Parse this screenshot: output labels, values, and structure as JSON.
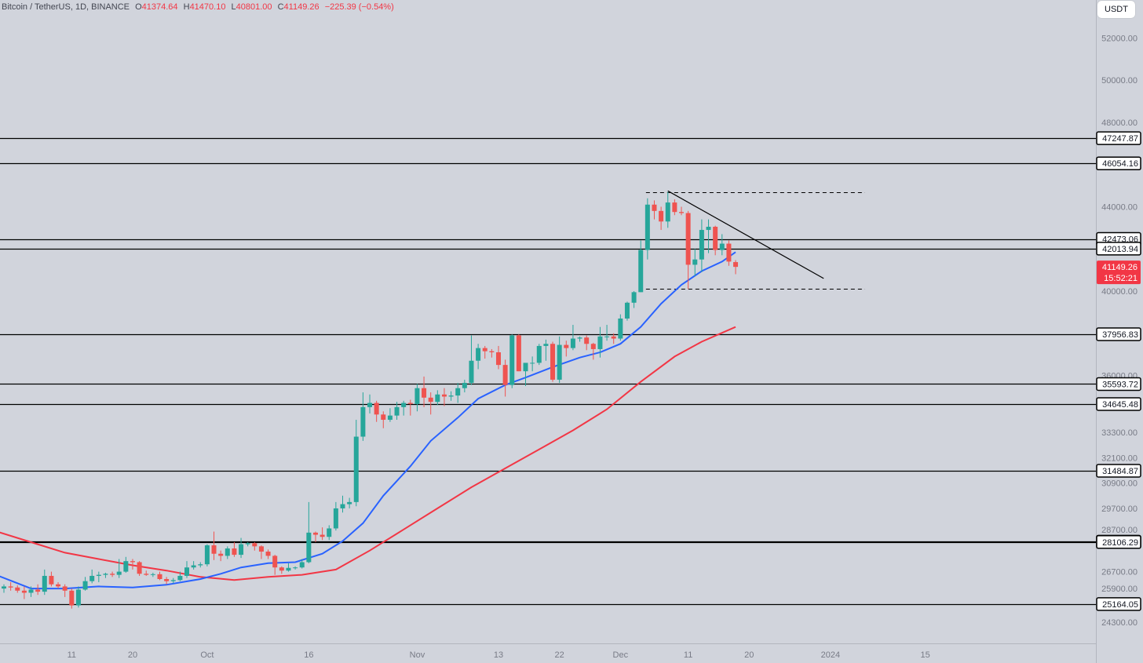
{
  "legend": {
    "symbol": "Bitcoin / TetherUS, 1D, BINANCE",
    "open_label": "O",
    "open": "41374.64",
    "high_label": "H",
    "high": "41470.10",
    "low_label": "L",
    "low": "40801.00",
    "close_label": "C",
    "close": "41149.26",
    "change": "−225.39 (−0.54%)"
  },
  "currency_button": "USDT",
  "colors": {
    "up": "#26a69a",
    "down": "#ef5350",
    "ma_fast": "#2962ff",
    "ma_slow": "#f23645",
    "background": "#d1d4dc"
  },
  "chart_data": {
    "type": "candlestick",
    "ylim": [
      23300,
      53800
    ],
    "y_ticks": [
      "52000.00",
      "50000.00",
      "48000.00",
      "44000.00",
      "40000.00",
      "36000.00",
      "33300.00",
      "32100.00",
      "30900.00",
      "29700.00",
      "28700.00",
      "26700.00",
      "25900.00",
      "24300.00"
    ],
    "x_ticks": [
      "11",
      "20",
      "Oct",
      "16",
      "Nov",
      "13",
      "22",
      "Dec",
      "11",
      "20",
      "2024",
      "15"
    ],
    "last_price": "41149.26",
    "countdown": "15:52:21",
    "horizontal_levels": [
      "47247.87",
      "46054.16",
      "42473.06",
      "42013.94",
      "37956.83",
      "35593.72",
      "34645.48",
      "31484.87",
      "28123.11",
      "28106.29",
      "25164.05"
    ],
    "consolidation_box": {
      "high": 44700,
      "low": 40100
    },
    "trendline": [
      {
        "date": "2023-12-08",
        "price": 44750
      },
      {
        "date": "2023-12-31",
        "price": 40600
      }
    ],
    "candles": [
      [
        "2023-09-01",
        25900,
        26100,
        25700,
        26000
      ],
      [
        "2023-09-02",
        26000,
        26200,
        25800,
        25950
      ],
      [
        "2023-09-03",
        25950,
        26050,
        25700,
        25800
      ],
      [
        "2023-09-04",
        25800,
        26000,
        25400,
        25700
      ],
      [
        "2023-09-05",
        25700,
        26000,
        25500,
        25850
      ],
      [
        "2023-09-06",
        25850,
        26100,
        25600,
        25750
      ],
      [
        "2023-09-07",
        25750,
        26800,
        25600,
        26500
      ],
      [
        "2023-09-08",
        26500,
        26700,
        26000,
        26100
      ],
      [
        "2023-09-09",
        26100,
        26200,
        25900,
        26000
      ],
      [
        "2023-09-10",
        26000,
        26100,
        25500,
        25800
      ],
      [
        "2023-09-11",
        25800,
        25900,
        24950,
        25100
      ],
      [
        "2023-09-12",
        25100,
        26000,
        25000,
        25850
      ],
      [
        "2023-09-13",
        25850,
        26450,
        25800,
        26250
      ],
      [
        "2023-09-14",
        26250,
        26800,
        26150,
        26500
      ],
      [
        "2023-09-15",
        26500,
        26700,
        26200,
        26550
      ],
      [
        "2023-09-16",
        26550,
        26650,
        26400,
        26600
      ],
      [
        "2023-09-17",
        26600,
        26700,
        26450,
        26550
      ],
      [
        "2023-09-18",
        26550,
        27300,
        26400,
        26700
      ],
      [
        "2023-09-19",
        26700,
        27400,
        26650,
        27200
      ],
      [
        "2023-09-20",
        27200,
        27300,
        26800,
        27150
      ],
      [
        "2023-09-21",
        27150,
        27200,
        26500,
        26600
      ],
      [
        "2023-09-22",
        26600,
        26750,
        26500,
        26550
      ],
      [
        "2023-09-23",
        26550,
        26650,
        26450,
        26580
      ],
      [
        "2023-09-24",
        26580,
        26700,
        26300,
        26350
      ],
      [
        "2023-09-25",
        26350,
        26450,
        26100,
        26250
      ],
      [
        "2023-09-26",
        26250,
        26400,
        26150,
        26300
      ],
      [
        "2023-09-27",
        26300,
        26700,
        26250,
        26500
      ],
      [
        "2023-09-28",
        26500,
        27200,
        26400,
        26900
      ],
      [
        "2023-09-29",
        26900,
        27200,
        26800,
        27000
      ],
      [
        "2023-09-30",
        27000,
        27150,
        26900,
        27050
      ],
      [
        "2023-10-01",
        27050,
        28000,
        26950,
        27950
      ],
      [
        "2023-10-02",
        27950,
        28600,
        27250,
        27550
      ],
      [
        "2023-10-03",
        27550,
        27700,
        27200,
        27450
      ],
      [
        "2023-10-04",
        27450,
        27900,
        27300,
        27800
      ],
      [
        "2023-10-05",
        27800,
        28100,
        27400,
        27500
      ],
      [
        "2023-10-06",
        27500,
        28300,
        27350,
        28000
      ],
      [
        "2023-10-07",
        28000,
        28100,
        27900,
        28050
      ],
      [
        "2023-10-08",
        28050,
        28100,
        27700,
        27900
      ],
      [
        "2023-10-09",
        27900,
        27950,
        27300,
        27650
      ],
      [
        "2023-10-10",
        27650,
        27750,
        27300,
        27450
      ],
      [
        "2023-10-11",
        27450,
        27500,
        26550,
        26900
      ],
      [
        "2023-10-12",
        26900,
        26950,
        26600,
        26750
      ],
      [
        "2023-10-13",
        26750,
        27100,
        26700,
        26880
      ],
      [
        "2023-10-14",
        26880,
        26950,
        26800,
        26900
      ],
      [
        "2023-10-15",
        26900,
        27300,
        26850,
        27150
      ],
      [
        "2023-10-16",
        27150,
        30000,
        27100,
        28550
      ],
      [
        "2023-10-17",
        28550,
        28600,
        28100,
        28450
      ],
      [
        "2023-10-18",
        28450,
        28800,
        28200,
        28350
      ],
      [
        "2023-10-19",
        28350,
        28900,
        28200,
        28750
      ],
      [
        "2023-10-20",
        28750,
        30000,
        28650,
        29700
      ],
      [
        "2023-10-21",
        29700,
        30300,
        29500,
        29900
      ],
      [
        "2023-10-22",
        29900,
        30200,
        29700,
        30000
      ],
      [
        "2023-10-23",
        30000,
        33900,
        29800,
        33100
      ],
      [
        "2023-10-24",
        33100,
        35200,
        32900,
        34500
      ],
      [
        "2023-10-25",
        34500,
        35100,
        34200,
        34700
      ],
      [
        "2023-10-26",
        34700,
        34800,
        33800,
        34150
      ],
      [
        "2023-10-27",
        34150,
        34300,
        33500,
        33900
      ],
      [
        "2023-10-28",
        33900,
        34450,
        33800,
        34100
      ],
      [
        "2023-10-29",
        34100,
        34750,
        33900,
        34500
      ],
      [
        "2023-10-30",
        34500,
        34800,
        34100,
        34700
      ],
      [
        "2023-10-31",
        34700,
        34850,
        34100,
        34650
      ],
      [
        "2023-11-01",
        34650,
        35600,
        34300,
        35400
      ],
      [
        "2023-11-02",
        35400,
        35950,
        34500,
        34950
      ],
      [
        "2023-11-03",
        34950,
        35200,
        34150,
        34750
      ],
      [
        "2023-11-04",
        34750,
        35300,
        34600,
        35100
      ],
      [
        "2023-11-05",
        35100,
        35400,
        34550,
        35000
      ],
      [
        "2023-11-06",
        35000,
        35250,
        34800,
        35050
      ],
      [
        "2023-11-07",
        35050,
        35650,
        34700,
        35400
      ],
      [
        "2023-11-08",
        35400,
        35800,
        35200,
        35650
      ],
      [
        "2023-11-09",
        35650,
        37900,
        35550,
        36700
      ],
      [
        "2023-11-10",
        36700,
        37500,
        36300,
        37300
      ],
      [
        "2023-11-11",
        37300,
        37400,
        36800,
        37150
      ],
      [
        "2023-11-12",
        37150,
        37250,
        36850,
        37100
      ],
      [
        "2023-11-13",
        37100,
        37400,
        36300,
        36500
      ],
      [
        "2023-11-14",
        36500,
        36750,
        35000,
        35550
      ],
      [
        "2023-11-15",
        35550,
        37950,
        35400,
        37900
      ],
      [
        "2023-11-16",
        37900,
        37950,
        36200,
        36200
      ],
      [
        "2023-11-17",
        36200,
        36500,
        35500,
        36600
      ],
      [
        "2023-11-18",
        36600,
        36900,
        36200,
        36600
      ],
      [
        "2023-11-19",
        36600,
        37500,
        36500,
        37400
      ],
      [
        "2023-11-20",
        37400,
        37700,
        36700,
        37500
      ],
      [
        "2023-11-21",
        37500,
        37600,
        35700,
        35800
      ],
      [
        "2023-11-22",
        35800,
        37850,
        35650,
        37450
      ],
      [
        "2023-11-23",
        37450,
        37650,
        36900,
        37300
      ],
      [
        "2023-11-24",
        37300,
        38400,
        37200,
        37750
      ],
      [
        "2023-11-25",
        37750,
        37850,
        37600,
        37800
      ],
      [
        "2023-11-26",
        37800,
        37900,
        37200,
        37500
      ],
      [
        "2023-11-27",
        37500,
        37550,
        36750,
        37250
      ],
      [
        "2023-11-28",
        37250,
        38300,
        36850,
        37850
      ],
      [
        "2023-11-29",
        37850,
        38400,
        37650,
        37850
      ],
      [
        "2023-11-30",
        37850,
        38000,
        37500,
        37750
      ],
      [
        "2023-12-01",
        37750,
        38900,
        37650,
        38700
      ],
      [
        "2023-12-02",
        38700,
        39500,
        38600,
        39450
      ],
      [
        "2023-12-03",
        39450,
        40000,
        39200,
        39950
      ],
      [
        "2023-12-04",
        39950,
        42400,
        39950,
        41950
      ],
      [
        "2023-12-05",
        41950,
        44400,
        41500,
        44100
      ],
      [
        "2023-12-06",
        44100,
        44300,
        43400,
        43800
      ],
      [
        "2023-12-07",
        43800,
        44000,
        42900,
        43300
      ],
      [
        "2023-12-08",
        43300,
        44700,
        43000,
        44200
      ],
      [
        "2023-12-09",
        44200,
        44350,
        43600,
        43750
      ],
      [
        "2023-12-10",
        43750,
        44000,
        43600,
        43700
      ],
      [
        "2023-12-11",
        43700,
        43800,
        40100,
        41250
      ],
      [
        "2023-12-12",
        41250,
        42000,
        40700,
        41500
      ],
      [
        "2023-12-13",
        41500,
        43400,
        40900,
        42900
      ],
      [
        "2023-12-14",
        42900,
        43400,
        41800,
        43050
      ],
      [
        "2023-12-15",
        43050,
        43100,
        41700,
        41950
      ],
      [
        "2023-12-16",
        41950,
        42700,
        41700,
        42250
      ],
      [
        "2023-12-17",
        42250,
        42400,
        41200,
        41400
      ],
      [
        "2023-12-18",
        41374.64,
        41470.1,
        40801.0,
        41149.26
      ]
    ],
    "ma_fast": [
      [
        "2023-08-30",
        26650
      ],
      [
        "2023-09-05",
        25900
      ],
      [
        "2023-09-10",
        25900
      ],
      [
        "2023-09-15",
        26000
      ],
      [
        "2023-09-20",
        25950
      ],
      [
        "2023-09-25",
        26080
      ],
      [
        "2023-09-30",
        26350
      ],
      [
        "2023-10-03",
        26600
      ],
      [
        "2023-10-06",
        26900
      ],
      [
        "2023-10-10",
        27100
      ],
      [
        "2023-10-14",
        27150
      ],
      [
        "2023-10-18",
        27550
      ],
      [
        "2023-10-21",
        28150
      ],
      [
        "2023-10-24",
        29000
      ],
      [
        "2023-10-27",
        30300
      ],
      [
        "2023-10-31",
        31700
      ],
      [
        "2023-11-03",
        32900
      ],
      [
        "2023-11-07",
        34000
      ],
      [
        "2023-11-10",
        34900
      ],
      [
        "2023-11-14",
        35550
      ],
      [
        "2023-11-17",
        35900
      ],
      [
        "2023-11-21",
        36400
      ],
      [
        "2023-11-25",
        36850
      ],
      [
        "2023-11-28",
        37100
      ],
      [
        "2023-12-01",
        37500
      ],
      [
        "2023-12-04",
        38300
      ],
      [
        "2023-12-07",
        39400
      ],
      [
        "2023-12-10",
        40300
      ],
      [
        "2023-12-13",
        40950
      ],
      [
        "2023-12-16",
        41400
      ],
      [
        "2023-12-18",
        41850
      ]
    ],
    "ma_slow": [
      [
        "2023-08-30",
        28700
      ],
      [
        "2023-09-05",
        28100
      ],
      [
        "2023-09-10",
        27600
      ],
      [
        "2023-09-15",
        27300
      ],
      [
        "2023-09-20",
        27000
      ],
      [
        "2023-09-25",
        26750
      ],
      [
        "2023-09-30",
        26450
      ],
      [
        "2023-10-05",
        26300
      ],
      [
        "2023-10-10",
        26450
      ],
      [
        "2023-10-15",
        26550
      ],
      [
        "2023-10-20",
        26800
      ],
      [
        "2023-10-25",
        27700
      ],
      [
        "2023-10-30",
        28700
      ],
      [
        "2023-11-04",
        29700
      ],
      [
        "2023-11-09",
        30700
      ],
      [
        "2023-11-14",
        31600
      ],
      [
        "2023-11-19",
        32500
      ],
      [
        "2023-11-24",
        33400
      ],
      [
        "2023-11-29",
        34400
      ],
      [
        "2023-12-04",
        35700
      ],
      [
        "2023-12-09",
        36900
      ],
      [
        "2023-12-13",
        37600
      ],
      [
        "2023-12-18",
        38300
      ]
    ]
  }
}
